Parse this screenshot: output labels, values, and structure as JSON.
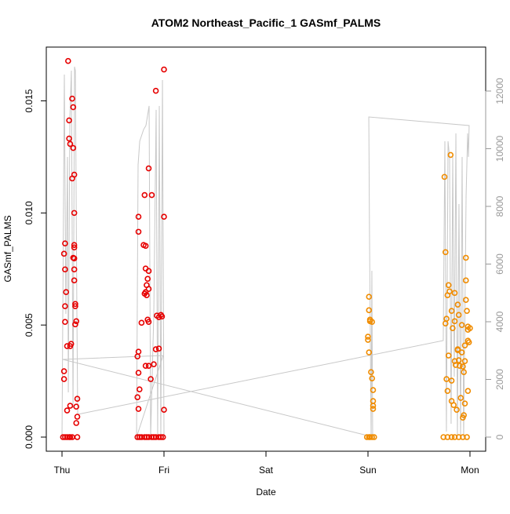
{
  "chart_data": {
    "type": "scatter",
    "title": "ATOM2 Northeast_Pacific_1 GASmf_PALMS",
    "xlabel": "Date",
    "ylabel": "GASmf_PALMS",
    "xlim": [
      -0.154,
      4.154
    ],
    "ylim": [
      -0.00063,
      0.0174
    ],
    "y2lim": [
      -490,
      13524
    ],
    "xticks": [
      {
        "value": 0,
        "label": "Thu"
      },
      {
        "value": 1,
        "label": "Fri"
      },
      {
        "value": 2,
        "label": "Sat"
      },
      {
        "value": 3,
        "label": "Sun"
      },
      {
        "value": 4,
        "label": "Mon"
      }
    ],
    "yticks": [
      {
        "value": 0,
        "label": "0.000"
      },
      0.005,
      {
        "value": 0.01,
        "label": "0.010"
      },
      0.015
    ],
    "y2ticks": [
      0,
      2000,
      4000,
      6000,
      8000,
      10000,
      12000
    ],
    "series": [
      {
        "type": "line",
        "axis": "y2",
        "color": "#c8c8c8",
        "x": [
          0,
          0.023,
          0.038,
          0.054,
          0.062,
          0.077,
          0.092,
          0.108,
          0.123,
          0.131,
          0.146,
          0.154,
          3.738,
          3.754,
          3.769,
          3.785,
          3.8,
          3.815,
          3.831,
          3.846,
          3.862,
          3.877,
          3.892,
          3.908,
          3.923,
          3.938,
          3.962,
          3.977,
          3.985,
          3.992,
          3.008,
          3.015,
          3.031,
          3.038,
          3.046,
          3.054,
          0.008,
          0.992,
          0.731,
          0.746,
          0.762,
          0.8,
          0.823,
          0.854,
          0.869,
          0.9,
          0.923,
          0.938,
          0.954,
          0.969,
          0.985,
          1.0
        ],
        "values": [
          0,
          12571,
          4272,
          9714,
          1551,
          11075,
          12707,
          1007,
          12843,
          12707,
          4272,
          789,
          3347,
          10258,
          190,
          10258,
          9714,
          463,
          9714,
          2095,
          10530,
          0,
          8082,
          0,
          9714,
          0,
          8354,
          10530,
          9714,
          10803,
          11102,
          6993,
          0,
          5769,
          0,
          0,
          2694,
          2830,
          0,
          9442,
          10258,
          10666,
          10803,
          11483,
          0,
          4272,
          11347,
          0,
          11483,
          0,
          12381,
          0
        ]
      },
      {
        "type": "scatter",
        "color": "#e60000",
        "x": [
          0.01,
          0.02,
          0.02,
          0.03,
          0.03,
          0.03,
          0.02,
          0.03,
          0.04,
          0.05,
          0.05,
          0.06,
          0.07,
          0.07,
          0.08,
          0.08,
          0.08,
          0.09,
          0.1,
          0.11,
          0.1,
          0.11,
          0.12,
          0.12,
          0.11,
          0.12,
          0.12,
          0.12,
          0.12,
          0.12,
          0.13,
          0.13,
          0.14,
          0.13,
          0.15,
          0.14,
          0.15,
          0.14,
          0.15,
          0.03,
          0.05,
          0.07,
          0.08,
          0.1,
          0.75,
          0.75,
          0.75,
          0.74,
          0.75,
          0.76,
          0.74,
          0.75,
          0.78,
          0.8,
          0.82,
          0.81,
          0.82,
          0.81,
          0.82,
          0.84,
          0.85,
          0.83,
          0.83,
          0.85,
          0.85,
          0.84,
          0.82,
          0.85,
          0.87,
          0.85,
          0.88,
          0.9,
          0.92,
          0.93,
          0.92,
          0.95,
          0.95,
          0.97,
          0.98,
          1.0,
          1.0,
          1.0,
          0.74,
          0.76,
          0.78,
          0.81,
          0.83,
          0.85,
          0.88,
          0.9,
          0.92,
          0.95,
          0.97,
          0.99
        ],
        "values": [
          0,
          0.00294,
          0.00259,
          0.00514,
          0.00584,
          0.00748,
          0.00818,
          0.00864,
          0.00647,
          0.00406,
          0.00119,
          0.01678,
          0.01413,
          0.01332,
          0.01308,
          0.00406,
          0.0014,
          0.00416,
          0.0151,
          0.01472,
          0.01154,
          0.0129,
          0.01171,
          0.01,
          0.008,
          0.00846,
          0.00857,
          0.00797,
          0.00699,
          0.00748,
          0.00594,
          0.00584,
          0.00517,
          0.00503,
          0.00171,
          0.00136,
          0.00091,
          0.00063,
          0,
          0,
          0,
          0,
          0,
          0,
          0.00983,
          0.00916,
          0.00381,
          0.0036,
          0.00287,
          0.00213,
          0.00178,
          0.00126,
          0.0051,
          0.00857,
          0.00853,
          0.0108,
          0.00647,
          0.0064,
          0.00752,
          0.00706,
          0.00741,
          0.00678,
          0.00633,
          0.00661,
          0.01199,
          0.00524,
          0.00318,
          0.00514,
          0.00259,
          0.00318,
          0.0108,
          0.00325,
          0.00392,
          0.00542,
          0.01545,
          0.00395,
          0.00535,
          0.00545,
          0.00538,
          0.0164,
          0.00983,
          0.00122,
          0,
          0,
          0,
          0,
          0,
          0,
          0,
          0,
          0,
          0,
          0,
          0
        ]
      },
      {
        "type": "scatter",
        "color": "#f08c00",
        "x": [
          3.0,
          3.01,
          3.01,
          3.0,
          3.02,
          3.02,
          3.01,
          3.03,
          3.04,
          3.04,
          3.05,
          3.05,
          3.05,
          3.05,
          3.06,
          2.99,
          3.01,
          3.02,
          3.04,
          3.75,
          3.76,
          3.77,
          3.76,
          3.77,
          3.78,
          3.79,
          3.78,
          3.79,
          3.8,
          3.81,
          3.82,
          3.82,
          3.82,
          3.83,
          3.84,
          3.85,
          3.85,
          3.85,
          3.86,
          3.87,
          3.88,
          3.88,
          3.88,
          3.89,
          3.89,
          3.9,
          3.91,
          3.92,
          3.92,
          3.93,
          3.93,
          3.94,
          3.95,
          3.95,
          3.96,
          3.96,
          3.96,
          3.97,
          3.98,
          3.98,
          3.99,
          4.0,
          3.98,
          3.95,
          3.94,
          3.98,
          3.74,
          3.78,
          3.82,
          3.85,
          3.89,
          3.93,
          3.97
        ],
        "values": [
          0.00448,
          0.00626,
          0.00566,
          0.00434,
          0.00517,
          0.00524,
          0.00378,
          0.0029,
          0.00514,
          0.00262,
          0.0021,
          0.00161,
          0.0014,
          0.00126,
          0,
          0,
          0,
          0,
          0,
          0.01161,
          0.00825,
          0.00528,
          0.00507,
          0.00259,
          0.00206,
          0.00364,
          0.00633,
          0.00678,
          0.0065,
          0.01259,
          0.00563,
          0.00252,
          0.00161,
          0.00486,
          0.00143,
          0.00339,
          0.00643,
          0.00517,
          0.00322,
          0.00122,
          0.00392,
          0.00388,
          0.00591,
          0.00545,
          0.00343,
          0.00318,
          0.00175,
          0.005,
          0.00378,
          0.00315,
          0.00087,
          0.0029,
          0.00409,
          0.00339,
          0.00612,
          0.00699,
          0.008,
          0.00563,
          0.00479,
          0.00493,
          0.00423,
          0.00486,
          0.00206,
          0.0015,
          0.00098,
          0.0043,
          0,
          0,
          0,
          0,
          0,
          0,
          0
        ]
      }
    ]
  }
}
